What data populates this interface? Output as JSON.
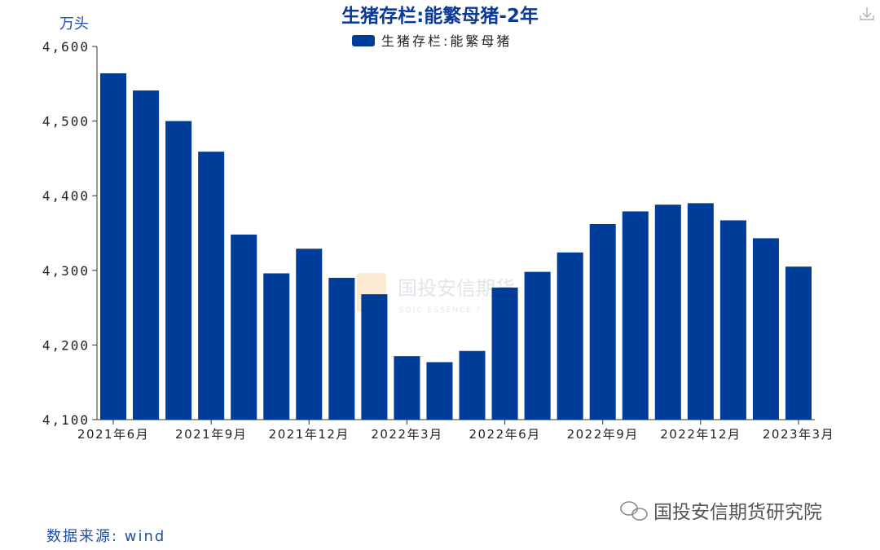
{
  "chart_data": {
    "type": "bar",
    "title": "生猪存栏:能繁母猪-2年",
    "ylabel": "万头",
    "ylim": [
      4100,
      4600
    ],
    "yticks": [
      "4,100",
      "4,200",
      "4,300",
      "4,400",
      "4,500",
      "4,600"
    ],
    "ytick_values": [
      4100,
      4200,
      4300,
      4400,
      4500,
      4600
    ],
    "legend": "top-center",
    "grid": false,
    "series": [
      {
        "name": "生猪存栏:能繁母猪",
        "color": "#003d99",
        "values": [
          4564,
          4541,
          4500,
          4459,
          4348,
          4296,
          4329,
          4290,
          4268,
          4185,
          4177,
          4192,
          4277,
          4298,
          4324,
          4362,
          4379,
          4388,
          4390,
          4367,
          4343,
          4305
        ]
      }
    ],
    "categories": [
      "2021-06",
      "2021-07",
      "2021-08",
      "2021-09",
      "2021-10",
      "2021-11",
      "2021-12",
      "2022-01",
      "2022-02",
      "2022-03",
      "2022-04",
      "2022-05",
      "2022-06",
      "2022-07",
      "2022-08",
      "2022-09",
      "2022-10",
      "2022-11",
      "2022-12",
      "2023-01",
      "2023-02",
      "2023-03"
    ],
    "xtick_labels": [
      {
        "index": 0,
        "label": "2021年6月"
      },
      {
        "index": 3,
        "label": "2021年9月"
      },
      {
        "index": 6,
        "label": "2021年12月"
      },
      {
        "index": 9,
        "label": "2022年3月"
      },
      {
        "index": 12,
        "label": "2022年6月"
      },
      {
        "index": 15,
        "label": "2022年9月"
      },
      {
        "index": 18,
        "label": "2022年12月"
      },
      {
        "index": 21,
        "label": "2023年3月"
      }
    ]
  },
  "footer": {
    "source": "数据来源: wind",
    "brand": "国投安信期货研究院"
  },
  "watermark": {
    "name": "国投安信期货",
    "sub": "SDIC ESSENCE F"
  },
  "icons": {
    "download": "download-icon",
    "wechat": "wechat-icon"
  }
}
